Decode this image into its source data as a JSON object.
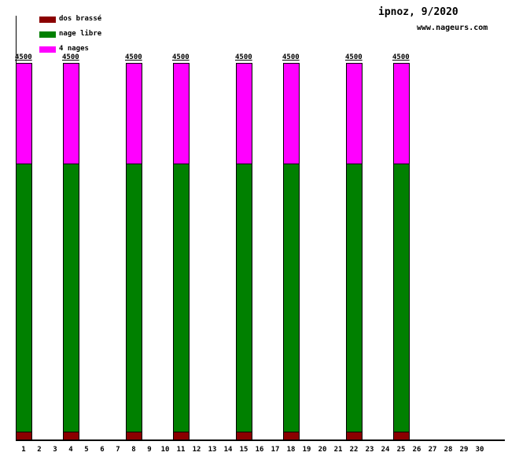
{
  "chart_data": {
    "type": "bar",
    "stacked": true,
    "title": "ipnoz, 9/2020",
    "watermark": "www.nageurs.com",
    "xlabel": "",
    "ylabel": "",
    "ylim": [
      0,
      4500
    ],
    "grid": false,
    "legend_position": "top-left",
    "categories": [
      1,
      2,
      3,
      4,
      5,
      6,
      7,
      8,
      9,
      10,
      11,
      12,
      13,
      14,
      15,
      16,
      17,
      18,
      19,
      20,
      21,
      22,
      23,
      24,
      25,
      26,
      27,
      28,
      29,
      30
    ],
    "bar_days": [
      1,
      4,
      8,
      11,
      15,
      18,
      22,
      25
    ],
    "bar_total": 4500,
    "bar_total_label": "4500",
    "series": [
      {
        "name": "dos brassé",
        "key": "dos-brasse",
        "color": "#8b0000",
        "values": [
          100,
          0,
          0,
          100,
          0,
          0,
          0,
          100,
          0,
          0,
          100,
          0,
          0,
          0,
          100,
          0,
          0,
          100,
          0,
          0,
          0,
          100,
          0,
          0,
          100,
          0,
          0,
          0,
          0,
          0
        ]
      },
      {
        "name": "nage libre",
        "key": "nage-libre",
        "color": "#008000",
        "values": [
          3200,
          0,
          0,
          3200,
          0,
          0,
          0,
          3200,
          0,
          0,
          3200,
          0,
          0,
          0,
          3200,
          0,
          0,
          3200,
          0,
          0,
          0,
          3200,
          0,
          0,
          3200,
          0,
          0,
          0,
          0,
          0
        ]
      },
      {
        "name": "4 nages",
        "key": "4-nages",
        "color": "#ff00ff",
        "values": [
          1200,
          0,
          0,
          1200,
          0,
          0,
          0,
          1200,
          0,
          0,
          1200,
          0,
          0,
          0,
          1200,
          0,
          0,
          1200,
          0,
          0,
          0,
          1200,
          0,
          0,
          1200,
          0,
          0,
          0,
          0,
          0
        ]
      }
    ]
  }
}
